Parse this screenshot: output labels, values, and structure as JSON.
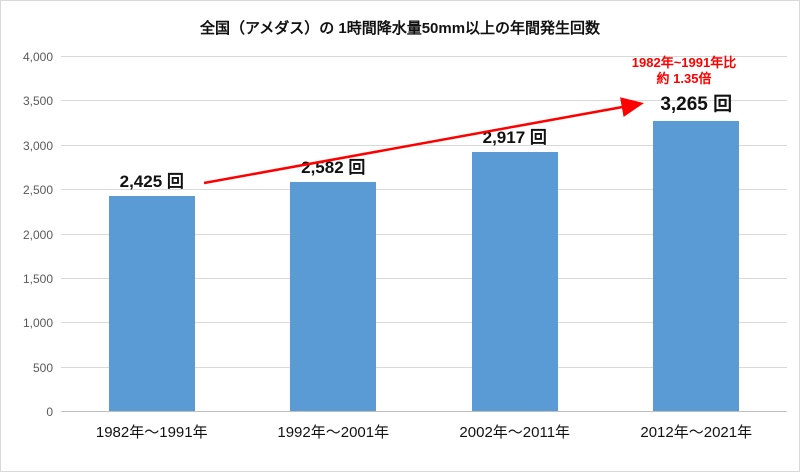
{
  "chart_data": {
    "type": "bar",
    "title": "全国（アメダス）の 1時間降水量50mm以上の年間発生回数",
    "categories": [
      "1982年～1991年",
      "1992年～2001年",
      "2002年～2011年",
      "2012年～2021年"
    ],
    "values": [
      2425,
      2582,
      2917,
      3265
    ],
    "value_labels": [
      "2,425 回",
      "2,582 回",
      "2,917 回",
      "3,265 回"
    ],
    "ylim": [
      0,
      4000
    ],
    "ytick_step": 500,
    "yticks": [
      "0",
      "500",
      "1,000",
      "1,500",
      "2,000",
      "2,500",
      "3,000",
      "3,500",
      "4,000"
    ],
    "xlabel": "",
    "ylabel": "",
    "grid": true,
    "legend": "none",
    "bar_color": "#5b9bd5",
    "annotation_color": "#ff0000"
  },
  "annotation": {
    "line1": "1982年~1991年比",
    "line2": "約 1.35倍"
  }
}
